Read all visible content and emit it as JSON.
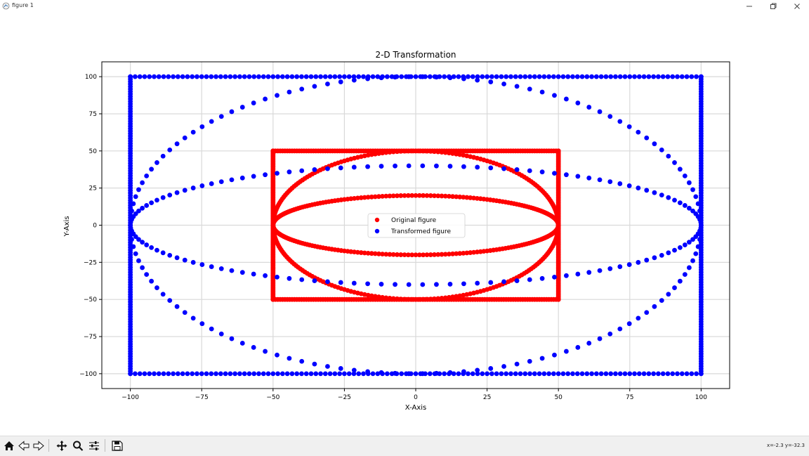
{
  "window": {
    "title": "figure 1",
    "minimize_icon": "minimize-icon",
    "maximize_icon": "maximize-icon",
    "close_icon": "close-icon"
  },
  "toolbar": {
    "buttons": [
      "home-icon",
      "back-icon",
      "forward-icon",
      "pan-icon",
      "zoom-icon",
      "configure-subplots-icon",
      "save-icon"
    ],
    "coords": "x=-2.3 y=-32.3"
  },
  "colors": {
    "original": "#ff0000",
    "transformed": "#0000ff"
  },
  "chart_data": {
    "type": "scatter",
    "title": "2-D Transformation",
    "xlabel": "X-Axis",
    "ylabel": "Y-Axis",
    "xlim": [
      -110,
      110
    ],
    "ylim": [
      -110,
      110
    ],
    "xticks": [
      -100,
      -75,
      -50,
      -25,
      0,
      25,
      50,
      75,
      100
    ],
    "yticks": [
      -100,
      -75,
      -50,
      -25,
      0,
      25,
      50,
      75,
      100
    ],
    "xtick_labels": [
      "−100",
      "−75",
      "−50",
      "−25",
      "0",
      "25",
      "50",
      "75",
      "100"
    ],
    "ytick_labels": [
      "−100",
      "−75",
      "−50",
      "−25",
      "0",
      "25",
      "50",
      "75",
      "100"
    ],
    "grid": true,
    "legend_position": "center",
    "series": [
      {
        "name": "Original figure",
        "color": "#ff0000",
        "shapes": [
          {
            "kind": "rectangle",
            "x_range": [
              -50,
              50
            ],
            "y_range": [
              -50,
              50
            ]
          },
          {
            "kind": "ellipse",
            "center": [
              0,
              0
            ],
            "rx": 50,
            "ry": 50
          },
          {
            "kind": "ellipse",
            "center": [
              0,
              0
            ],
            "rx": 50,
            "ry": 20
          }
        ]
      },
      {
        "name": "Transformed figure",
        "color": "#0000ff",
        "shapes": [
          {
            "kind": "rectangle",
            "x_range": [
              -100,
              100
            ],
            "y_range": [
              -100,
              100
            ]
          },
          {
            "kind": "ellipse",
            "center": [
              0,
              0
            ],
            "rx": 100,
            "ry": 100
          },
          {
            "kind": "ellipse",
            "center": [
              0,
              0
            ],
            "rx": 100,
            "ry": 40
          }
        ]
      }
    ]
  }
}
